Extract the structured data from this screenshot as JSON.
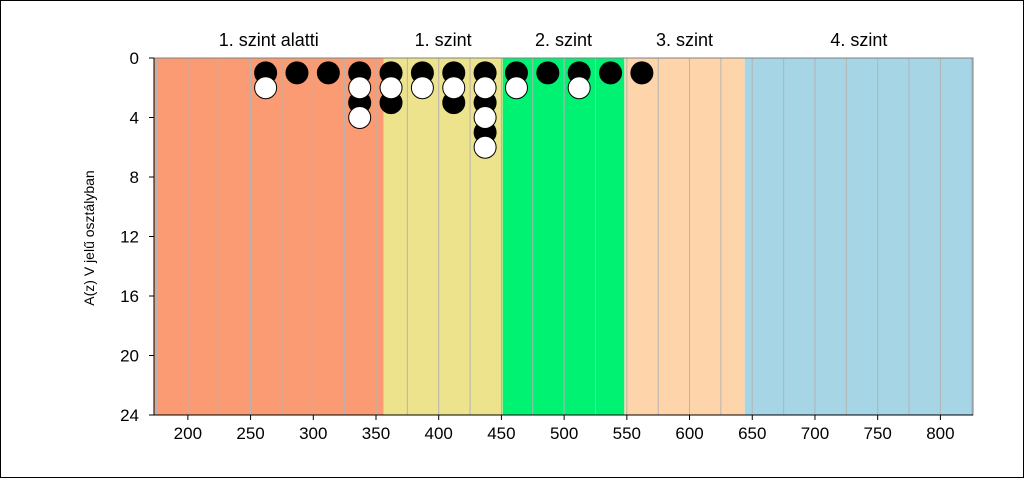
{
  "chart_data": {
    "type": "scatter",
    "ylabel": "A(z) V jelű osztályban",
    "xlim": [
      173,
      826
    ],
    "ylim": [
      0,
      24
    ],
    "y_inverted": true,
    "x_ticks": [
      200,
      250,
      300,
      350,
      400,
      450,
      500,
      550,
      600,
      650,
      700,
      750,
      800
    ],
    "y_ticks": [
      0,
      4,
      8,
      12,
      16,
      20,
      24
    ],
    "grid_x_step": 25,
    "bands": [
      {
        "label": "1. szint alatti",
        "from": 173,
        "to": 356,
        "color": "#fa9b73"
      },
      {
        "label": "1. szint",
        "from": 356,
        "to": 451,
        "color": "#ece38c"
      },
      {
        "label": "2. szint",
        "from": 451,
        "to": 548,
        "color": "#00f273"
      },
      {
        "label": "3. szint",
        "from": 548,
        "to": 644,
        "color": "#fed5ab"
      },
      {
        "label": "4. szint",
        "from": 644,
        "to": 826,
        "color": "#a6d5e5"
      }
    ],
    "series": [
      {
        "marker": "filled",
        "color": "#000000",
        "points": [
          {
            "x": 262,
            "y": 1
          },
          {
            "x": 287,
            "y": 1
          },
          {
            "x": 312,
            "y": 1
          },
          {
            "x": 337,
            "y": 1
          },
          {
            "x": 337,
            "y": 3
          },
          {
            "x": 362,
            "y": 1
          },
          {
            "x": 362,
            "y": 3
          },
          {
            "x": 387,
            "y": 1
          },
          {
            "x": 412,
            "y": 1
          },
          {
            "x": 412,
            "y": 3
          },
          {
            "x": 437,
            "y": 1
          },
          {
            "x": 437,
            "y": 3
          },
          {
            "x": 437,
            "y": 5
          },
          {
            "x": 462,
            "y": 1
          },
          {
            "x": 487,
            "y": 1
          },
          {
            "x": 512,
            "y": 1
          },
          {
            "x": 537,
            "y": 1
          },
          {
            "x": 562,
            "y": 1
          }
        ]
      },
      {
        "marker": "open",
        "color": "#ffffff",
        "points": [
          {
            "x": 262,
            "y": 2
          },
          {
            "x": 337,
            "y": 2
          },
          {
            "x": 337,
            "y": 4
          },
          {
            "x": 362,
            "y": 2
          },
          {
            "x": 387,
            "y": 2
          },
          {
            "x": 412,
            "y": 2
          },
          {
            "x": 437,
            "y": 2
          },
          {
            "x": 437,
            "y": 4
          },
          {
            "x": 437,
            "y": 6
          },
          {
            "x": 462,
            "y": 2
          },
          {
            "x": 512,
            "y": 2
          }
        ]
      }
    ]
  }
}
